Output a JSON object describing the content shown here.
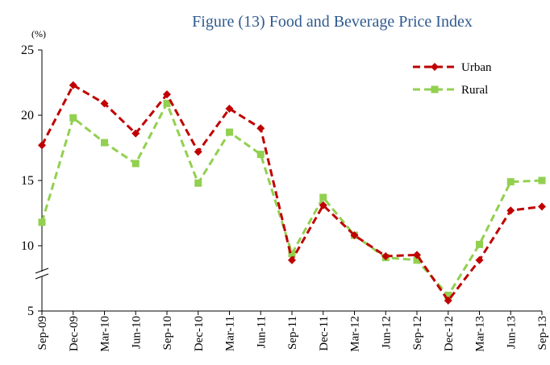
{
  "chart_data": {
    "type": "line",
    "title": "Figure (13) Food and Beverage Price Index",
    "y_label": "(%)",
    "categories": [
      "Sep-09",
      "Dec-09",
      "Mar-10",
      "Jun-10",
      "Sep-10",
      "Dec-10",
      "Mar-11",
      "Jun-11",
      "Sep-11",
      "Dec-11",
      "Mar-12",
      "Jun-12",
      "Sep-12",
      "Dec-12",
      "Mar-13",
      "Jun-13",
      "Sep-13"
    ],
    "series": [
      {
        "name": "Urban",
        "color": "#c00000",
        "marker": "diamond",
        "values": [
          17.7,
          22.3,
          20.9,
          18.6,
          21.6,
          17.2,
          20.5,
          19.0,
          8.9,
          13.1,
          10.8,
          9.2,
          9.3,
          5.8,
          8.9,
          12.7,
          13.0
        ]
      },
      {
        "name": "Rural",
        "color": "#92d050",
        "marker": "square",
        "values": [
          11.8,
          19.8,
          17.9,
          16.3,
          20.9,
          14.8,
          18.7,
          17.0,
          9.4,
          13.7,
          10.8,
          9.1,
          8.9,
          6.2,
          10.1,
          14.9,
          15.0
        ]
      }
    ],
    "ylim": [
      5,
      25
    ],
    "yticks": [
      5,
      10,
      15,
      20,
      25
    ],
    "legend": "top-right"
  }
}
